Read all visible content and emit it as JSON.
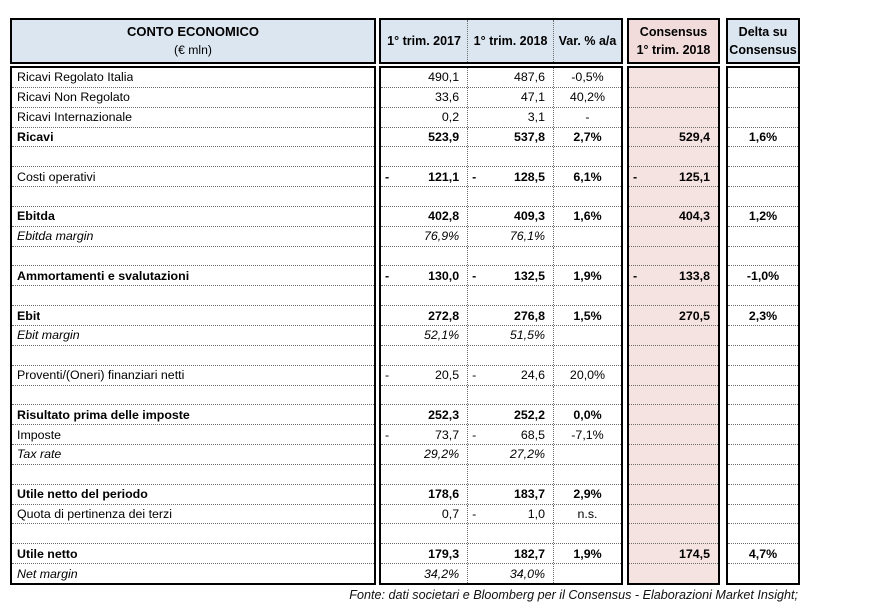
{
  "header": {
    "label_title": "CONTO ECONOMICO",
    "label_subtitle": "(€ mln)",
    "col_2017": "1° trim. 2017",
    "col_2018": "1° trim. 2018",
    "col_var": "Var. % a/a",
    "col_consensus_line1": "Consensus",
    "col_consensus_line2": "1° trim. 2018",
    "col_delta_line1": "Delta su",
    "col_delta_line2": "Consensus"
  },
  "rows": [
    {
      "label": "Ricavi Regolato Italia",
      "y2017": "490,1",
      "y2018": "487,6",
      "var": "-0,5%",
      "consensus": "",
      "delta": "",
      "bold_label": false,
      "bold_values": false,
      "italic": false,
      "empty": false
    },
    {
      "label": "Ricavi Non Regolato",
      "y2017": "33,6",
      "y2018": "47,1",
      "var": "40,2%",
      "consensus": "",
      "delta": "",
      "bold_label": false,
      "bold_values": false,
      "italic": false,
      "empty": false
    },
    {
      "label": "Ricavi Internazionale",
      "y2017": "0,2",
      "y2018": "3,1",
      "var": "-",
      "consensus": "",
      "delta": "",
      "bold_label": false,
      "bold_values": false,
      "italic": false,
      "empty": false
    },
    {
      "label": "Ricavi",
      "y2017": "523,9",
      "y2018": "537,8",
      "var": "2,7%",
      "consensus": "529,4",
      "delta": "1,6%",
      "bold_label": true,
      "bold_values": true,
      "italic": false,
      "empty": false
    },
    {
      "label": "",
      "y2017": "",
      "y2018": "",
      "var": "",
      "consensus": "",
      "delta": "",
      "bold_label": false,
      "bold_values": false,
      "italic": false,
      "empty": true
    },
    {
      "label": "Costi operativi",
      "y2017": "-121,1",
      "y2018": "-128,5",
      "var": "6,1%",
      "consensus": "-125,1",
      "delta": "",
      "bold_label": false,
      "bold_values": true,
      "italic": false,
      "empty": false
    },
    {
      "label": "",
      "y2017": "",
      "y2018": "",
      "var": "",
      "consensus": "",
      "delta": "",
      "bold_label": false,
      "bold_values": false,
      "italic": false,
      "empty": true
    },
    {
      "label": "Ebitda",
      "y2017": "402,8",
      "y2018": "409,3",
      "var": "1,6%",
      "consensus": "404,3",
      "delta": "1,2%",
      "bold_label": true,
      "bold_values": true,
      "italic": false,
      "empty": false
    },
    {
      "label": "Ebitda margin",
      "y2017": "76,9%",
      "y2018": "76,1%",
      "var": "",
      "consensus": "",
      "delta": "",
      "bold_label": false,
      "bold_values": false,
      "italic": true,
      "empty": false
    },
    {
      "label": "",
      "y2017": "",
      "y2018": "",
      "var": "",
      "consensus": "",
      "delta": "",
      "bold_label": false,
      "bold_values": false,
      "italic": false,
      "empty": true
    },
    {
      "label": "Ammortamenti e svalutazioni",
      "y2017": "-130,0",
      "y2018": "-132,5",
      "var": "1,9%",
      "consensus": "-133,8",
      "delta": "-1,0%",
      "bold_label": true,
      "bold_values": true,
      "italic": false,
      "empty": false
    },
    {
      "label": "",
      "y2017": "",
      "y2018": "",
      "var": "",
      "consensus": "",
      "delta": "",
      "bold_label": false,
      "bold_values": false,
      "italic": false,
      "empty": true
    },
    {
      "label": "Ebit",
      "y2017": "272,8",
      "y2018": "276,8",
      "var": "1,5%",
      "consensus": "270,5",
      "delta": "2,3%",
      "bold_label": true,
      "bold_values": true,
      "italic": false,
      "empty": false
    },
    {
      "label": "Ebit margin",
      "y2017": "52,1%",
      "y2018": "51,5%",
      "var": "",
      "consensus": "",
      "delta": "",
      "bold_label": false,
      "bold_values": false,
      "italic": true,
      "empty": false
    },
    {
      "label": "",
      "y2017": "",
      "y2018": "",
      "var": "",
      "consensus": "",
      "delta": "",
      "bold_label": false,
      "bold_values": false,
      "italic": false,
      "empty": true
    },
    {
      "label": "Proventi/(Oneri) finanziari netti",
      "y2017": "-20,5",
      "y2018": "-24,6",
      "var": "20,0%",
      "consensus": "",
      "delta": "",
      "bold_label": false,
      "bold_values": false,
      "italic": false,
      "empty": false
    },
    {
      "label": "",
      "y2017": "",
      "y2018": "",
      "var": "",
      "consensus": "",
      "delta": "",
      "bold_label": false,
      "bold_values": false,
      "italic": false,
      "empty": true
    },
    {
      "label": "Risultato prima delle imposte",
      "y2017": "252,3",
      "y2018": "252,2",
      "var": "0,0%",
      "consensus": "",
      "delta": "",
      "bold_label": true,
      "bold_values": true,
      "italic": false,
      "empty": false
    },
    {
      "label": "Imposte",
      "y2017": "-73,7",
      "y2018": "-68,5",
      "var": "-7,1%",
      "consensus": "",
      "delta": "",
      "bold_label": false,
      "bold_values": false,
      "italic": false,
      "empty": false
    },
    {
      "label": "Tax rate",
      "y2017": "29,2%",
      "y2018": "27,2%",
      "var": "",
      "consensus": "",
      "delta": "",
      "bold_label": false,
      "bold_values": false,
      "italic": true,
      "empty": false
    },
    {
      "label": "",
      "y2017": "",
      "y2018": "",
      "var": "",
      "consensus": "",
      "delta": "",
      "bold_label": false,
      "bold_values": false,
      "italic": false,
      "empty": true
    },
    {
      "label": "Utile netto del periodo",
      "y2017": "178,6",
      "y2018": "183,7",
      "var": "2,9%",
      "consensus": "",
      "delta": "",
      "bold_label": true,
      "bold_values": true,
      "italic": false,
      "empty": false
    },
    {
      "label": "Quota di pertinenza dei terzi",
      "y2017": "0,7",
      "y2018": "-1,0",
      "var": "n.s.",
      "consensus": "",
      "delta": "",
      "bold_label": false,
      "bold_values": false,
      "italic": false,
      "empty": false
    },
    {
      "label": "",
      "y2017": "",
      "y2018": "",
      "var": "",
      "consensus": "",
      "delta": "",
      "bold_label": false,
      "bold_values": false,
      "italic": false,
      "empty": true
    },
    {
      "label": "Utile netto",
      "y2017": "179,3",
      "y2018": "182,7",
      "var": "1,9%",
      "consensus": "174,5",
      "delta": "4,7%",
      "bold_label": true,
      "bold_values": true,
      "italic": false,
      "empty": false
    },
    {
      "label": "Net margin",
      "y2017": "34,2%",
      "y2018": "34,0%",
      "var": "",
      "consensus": "",
      "delta": "",
      "bold_label": false,
      "bold_values": false,
      "italic": true,
      "empty": false
    }
  ],
  "footer": {
    "text": "Fonte: dati societari e Bloomberg per il Consensus - Elaborazioni Market Insight;"
  },
  "colors": {
    "header_blue": "#dce6f1",
    "consensus_pink": "#f2dcdb",
    "consensus_body_pink": "#f5e3e2",
    "border_black": "#000000"
  }
}
